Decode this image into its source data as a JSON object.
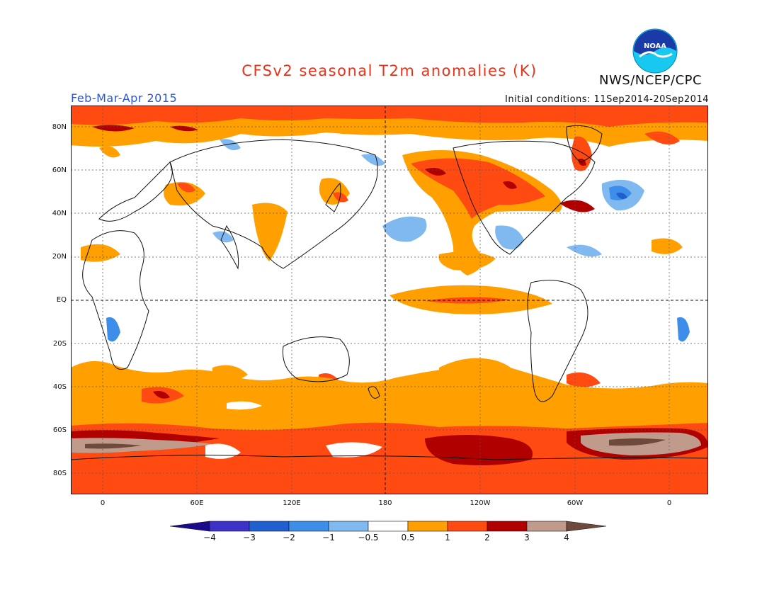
{
  "header": {
    "title": "CFSv2 seasonal T2m anomalies (K)",
    "agency": "NWS/NCEP/CPC",
    "season": "Feb-Mar-Apr 2015",
    "initial_conditions": "Initial conditions: 11Sep2014-20Sep2014",
    "logo_text": "NOAA"
  },
  "axes": {
    "lat_labels": [
      "80N",
      "60N",
      "40N",
      "20N",
      "EQ",
      "20S",
      "40S",
      "60S",
      "80S"
    ],
    "lon_labels": [
      "0",
      "60E",
      "120E",
      "180",
      "120W",
      "60W",
      "0"
    ]
  },
  "colorbar": {
    "levels": [
      "-4",
      "-3",
      "-2",
      "-1",
      "-0.5",
      "0.5",
      "1",
      "2",
      "3",
      "4"
    ],
    "colors": [
      "#1a0a8c",
      "#3c32c8",
      "#1f5fd0",
      "#3d8ee8",
      "#7fb9f0",
      "#ffffff",
      "#ffa000",
      "#ff4a12",
      "#b00000",
      "#c09a8a",
      "#6e4a3c"
    ]
  },
  "palette": {
    "title_color": "#e8321a",
    "season_color": "#2a55d6",
    "background": "#ffffff"
  }
}
